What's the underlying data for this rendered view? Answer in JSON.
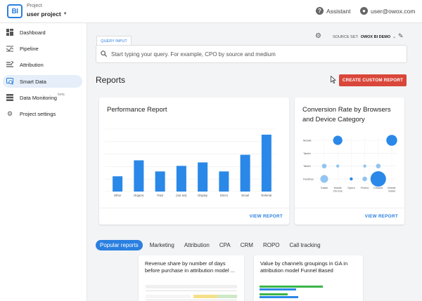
{
  "header": {
    "logo_text": "BI",
    "project_label": "Project",
    "project_name": "user project",
    "assistant_label": "Assistant",
    "user_email": "user@owox.com"
  },
  "sidebar": {
    "items": [
      {
        "label": "Dashboard",
        "icon": "dashboard-icon"
      },
      {
        "label": "Pipeline",
        "icon": "pipeline-icon"
      },
      {
        "label": "Attribution",
        "icon": "attribution-icon"
      },
      {
        "label": "Smart Data",
        "icon": "smart-data-icon"
      },
      {
        "label": "Data Monitoring",
        "icon": "data-monitoring-icon",
        "badge": "beta"
      },
      {
        "label": "Project settings",
        "icon": "gear-icon"
      }
    ],
    "active_index": 3
  },
  "query": {
    "tab_label": "QUERY INPUT",
    "placeholder": "Start typing your query. For example, CPO by source and medium",
    "source_set_label": "SOURCE SET:",
    "source_set_value": "OWOX BI DEMO"
  },
  "reports": {
    "title": "Reports",
    "create_button": "CREATE CUSTOM REPORT"
  },
  "cards": [
    {
      "title": "Performance Report",
      "action": "VIEW REPORT"
    },
    {
      "title": "Conversion Rate by Browsers and Device Category",
      "action": "VIEW REPORT"
    }
  ],
  "chart_data": [
    {
      "type": "bar",
      "title": "Performance Report",
      "categories": [
        "Other",
        "Organic",
        "Paid",
        "(not set)",
        "Display",
        "Direct",
        "Email",
        "Referral"
      ],
      "values": [
        22,
        45,
        29,
        37,
        42,
        29,
        53,
        82
      ],
      "ylim": [
        0,
        90
      ],
      "grid": true,
      "color": "#2a88e8"
    },
    {
      "type": "scatter",
      "title": "Conversion Rate by Browsers and Device Category",
      "x_categories": [
        "Safari",
        "Mobile Chrome",
        "Opera",
        "Firefox",
        "Chrome",
        "Mobile Safari"
      ],
      "y_categories": [
        "Mobile",
        "Tablet",
        "Tablet",
        "Desktop"
      ],
      "points": [
        {
          "x": "Mobile Chrome",
          "y": "Mobile",
          "size": 6,
          "color": "#2a88e8"
        },
        {
          "x": "Mobile Safari",
          "y": "Mobile",
          "size": 7,
          "color": "#2a88e8"
        },
        {
          "x": "Safari",
          "y": "Tablet",
          "size": 3,
          "color": "#90c4f2"
        },
        {
          "x": "Mobile Chrome",
          "y": "Tablet",
          "size": 2,
          "color": "#90c4f2"
        },
        {
          "x": "Firefox",
          "y": "Tablet",
          "size": 2,
          "color": "#90c4f2"
        },
        {
          "x": "Chrome",
          "y": "Tablet",
          "size": 3,
          "color": "#90c4f2"
        },
        {
          "x": "Safari",
          "y": "Desktop",
          "size": 5,
          "color": "#90c4f2"
        },
        {
          "x": "Opera",
          "y": "Desktop",
          "size": 2,
          "color": "#2a88e8"
        },
        {
          "x": "Firefox",
          "y": "Desktop",
          "size": 3,
          "color": "#90c4f2"
        },
        {
          "x": "Chrome",
          "y": "Desktop",
          "size": 10,
          "color": "#2a88e8"
        }
      ],
      "grid": true
    }
  ],
  "tabs": {
    "items": [
      "Popular reports",
      "Marketing",
      "Attribution",
      "CPA",
      "CRM",
      "ROPO",
      "Call tracking"
    ],
    "active_index": 0
  },
  "popular": [
    {
      "title": "Revenue share by number of days before purchase in attribution model ..."
    },
    {
      "title": "Value by channels groupings in GA in attribution model Funnel Based"
    }
  ],
  "colors": {
    "accent": "#2a7fe0",
    "create_button": "#d9473a",
    "bar": "#2a88e8",
    "bubble_light": "#90c4f2"
  }
}
